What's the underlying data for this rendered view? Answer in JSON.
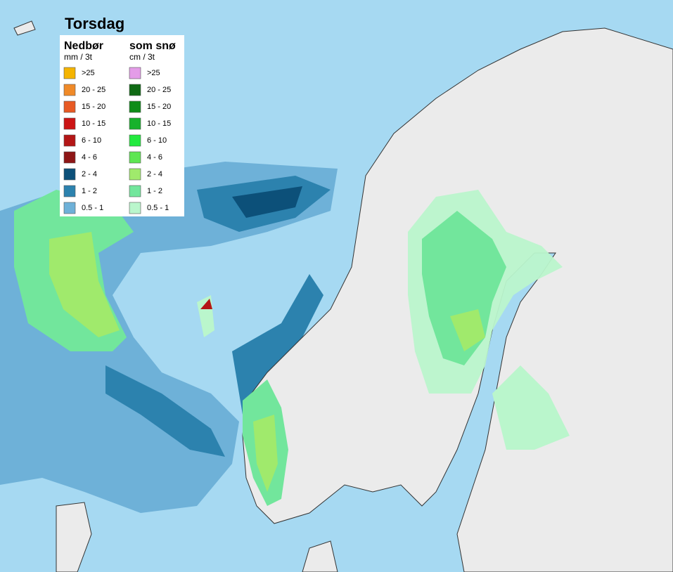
{
  "title": "Torsdag",
  "legend": {
    "precipitation": {
      "title": "Nedbør",
      "unit": "mm / 3t",
      "items": [
        {
          "label": ">25",
          "color": "#f5b400"
        },
        {
          "label": "20 - 25",
          "color": "#f08a28"
        },
        {
          "label": "15 - 20",
          "color": "#e85a24"
        },
        {
          "label": "10 - 15",
          "color": "#cc1414"
        },
        {
          "label": "6 - 10",
          "color": "#b41616"
        },
        {
          "label": "4 - 6",
          "color": "#8e1616"
        },
        {
          "label": "2 - 4",
          "color": "#0c5079"
        },
        {
          "label": "1 - 2",
          "color": "#2c82ae"
        },
        {
          "label": "0.5 - 1",
          "color": "#6eb1d8"
        }
      ]
    },
    "snow": {
      "title": "som snø",
      "unit": "cm / 3t",
      "items": [
        {
          "label": ">25",
          "color": "#e49ce8"
        },
        {
          "label": "20 - 25",
          "color": "#0f6a14"
        },
        {
          "label": "15 - 20",
          "color": "#0e8c18"
        },
        {
          "label": "10 - 15",
          "color": "#18b22c"
        },
        {
          "label": "6 - 10",
          "color": "#22ea3e"
        },
        {
          "label": "4 - 6",
          "color": "#5ee652"
        },
        {
          "label": "2 - 4",
          "color": "#a0ea6c"
        },
        {
          "label": "1 - 2",
          "color": "#72e69c"
        },
        {
          "label": "0.5 - 1",
          "color": "#baf6cc"
        }
      ]
    }
  }
}
